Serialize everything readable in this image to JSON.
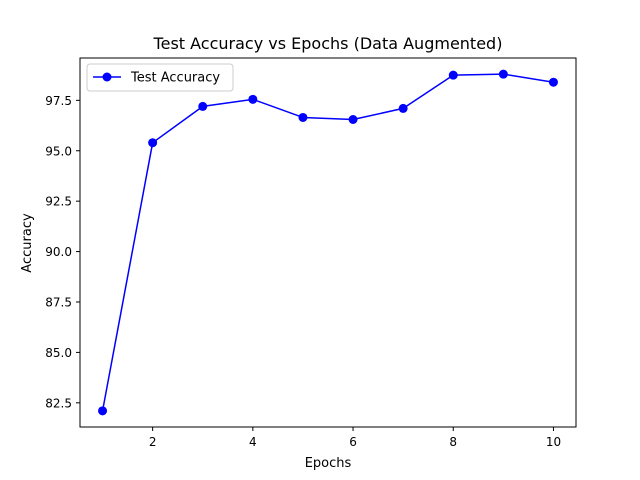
{
  "chart_data": {
    "type": "line",
    "title": "Test Accuracy vs Epochs (Data Augmented)",
    "xlabel": "Epochs",
    "ylabel": "Accuracy",
    "xlim": [
      0.55,
      10.45
    ],
    "ylim": [
      81.3,
      99.6
    ],
    "x_ticks": [
      2,
      4,
      6,
      8,
      10
    ],
    "x_tick_labels": [
      "2",
      "4",
      "6",
      "8",
      "10"
    ],
    "y_ticks": [
      82.5,
      85.0,
      87.5,
      90.0,
      92.5,
      95.0,
      97.5
    ],
    "y_tick_labels": [
      "82.5",
      "85.0",
      "87.5",
      "90.0",
      "92.5",
      "95.0",
      "97.5"
    ],
    "grid": false,
    "legend_position": "top-left",
    "series": [
      {
        "name": "Test Accuracy",
        "color": "#0000ff",
        "marker": "circle",
        "x": [
          1,
          2,
          3,
          4,
          5,
          6,
          7,
          8,
          9,
          10
        ],
        "y": [
          82.1,
          95.4,
          97.2,
          97.55,
          96.65,
          96.55,
          97.1,
          98.75,
          98.8,
          98.4
        ]
      }
    ]
  }
}
